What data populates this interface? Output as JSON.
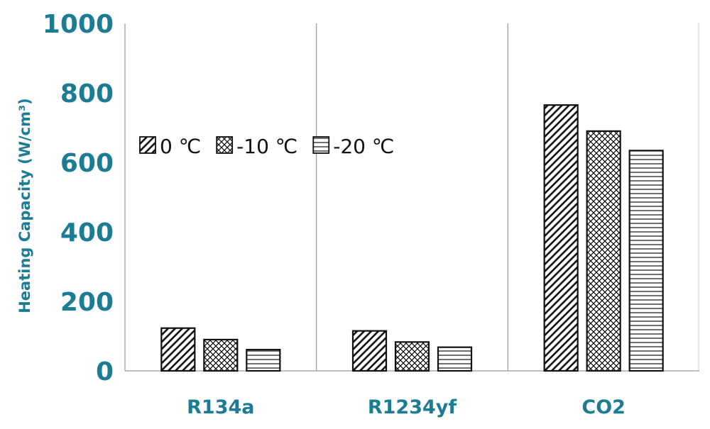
{
  "chart_data": {
    "type": "bar",
    "title": "",
    "xlabel": "",
    "ylabel": "Heating Capacity (W/cm³)",
    "ylim": [
      0,
      1000
    ],
    "yticks": [
      0,
      200,
      400,
      600,
      800,
      1000
    ],
    "categories": [
      "R134a",
      "R1234yf",
      "CO2"
    ],
    "series": [
      {
        "name": "0 ℃",
        "pattern": "diagonal",
        "values": [
          123,
          115,
          765
        ]
      },
      {
        "name": "-10 ℃",
        "pattern": "crosshatch",
        "values": [
          90,
          83,
          690
        ]
      },
      {
        "name": "-20 ℃",
        "pattern": "horizontal",
        "values": [
          61,
          68,
          634
        ]
      }
    ],
    "legend_position": "top-left",
    "grid": false,
    "colors": {
      "axis_text": "#1b7c93",
      "bar_stroke": "#111111",
      "separator": "#999999"
    }
  }
}
